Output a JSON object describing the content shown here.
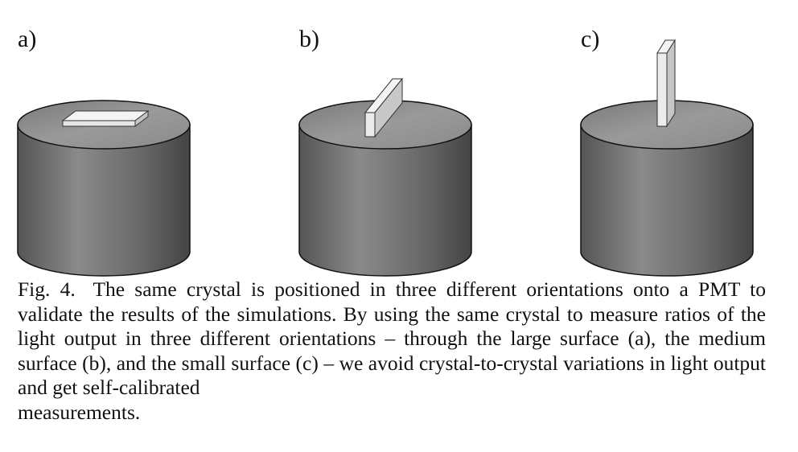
{
  "panels": [
    {
      "label": "a)",
      "orientation": "large surface"
    },
    {
      "label": "b)",
      "orientation": "medium surface"
    },
    {
      "label": "c)",
      "orientation": "small surface"
    }
  ],
  "caption": {
    "figure_number": "Fig. 4.",
    "body": "The same crystal is positioned in three different orientations onto a PMT to validate the results of the simulations. By using the same crystal to measure ratios of the light output in three different orientations – through the large surface (a), the medium surface (b), and the small surface (c) – we avoid crystal-to-crystal variations in light output and get self-calibrated",
    "last_line": "measurements."
  },
  "colors": {
    "cylinder_side_light": "#9a9a9a",
    "cylinder_side_dark": "#3e3e3e",
    "cylinder_top": "#8c8c8c",
    "crystal_face": "#f2f2f2",
    "crystal_shade": "#c8c8c8"
  }
}
